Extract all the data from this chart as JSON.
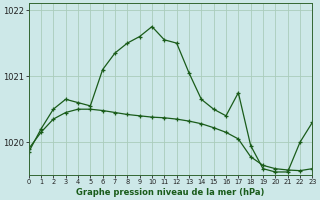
{
  "title": "Graphe pression niveau de la mer (hPa)",
  "bg_color": "#cde8e8",
  "grid_color": "#aaccbb",
  "line_color": "#1a5c1a",
  "marker_color": "#1a5c1a",
  "line1": [
    1019.85,
    1020.2,
    1020.5,
    1020.65,
    1020.6,
    1020.55,
    1021.1,
    1021.35,
    1021.5,
    1021.6,
    1021.75,
    1021.55,
    1021.5,
    1021.05,
    1020.65,
    1020.5,
    1020.4,
    1020.75,
    1019.95,
    1019.6,
    1019.55,
    1019.55,
    1020.0,
    1020.3
  ],
  "line2": [
    1019.9,
    1020.15,
    1020.35,
    1020.45,
    1020.5,
    1020.5,
    1020.48,
    1020.45,
    1020.42,
    1020.4,
    1020.38,
    1020.37,
    1020.35,
    1020.32,
    1020.28,
    1020.22,
    1020.15,
    1020.05,
    1019.78,
    1019.65,
    1019.6,
    1019.58,
    1019.57,
    1019.6
  ],
  "xlim": [
    0,
    23
  ],
  "ylim": [
    1019.5,
    1022.1
  ],
  "yticks": [
    1020,
    1021,
    1022
  ],
  "ytick_labels": [
    "1020",
    "1021",
    "1022"
  ],
  "xticks": [
    0,
    1,
    2,
    3,
    4,
    5,
    6,
    7,
    8,
    9,
    10,
    11,
    12,
    13,
    14,
    15,
    16,
    17,
    18,
    19,
    20,
    21,
    22,
    23
  ],
  "figsize": [
    3.2,
    2.0
  ],
  "dpi": 100
}
